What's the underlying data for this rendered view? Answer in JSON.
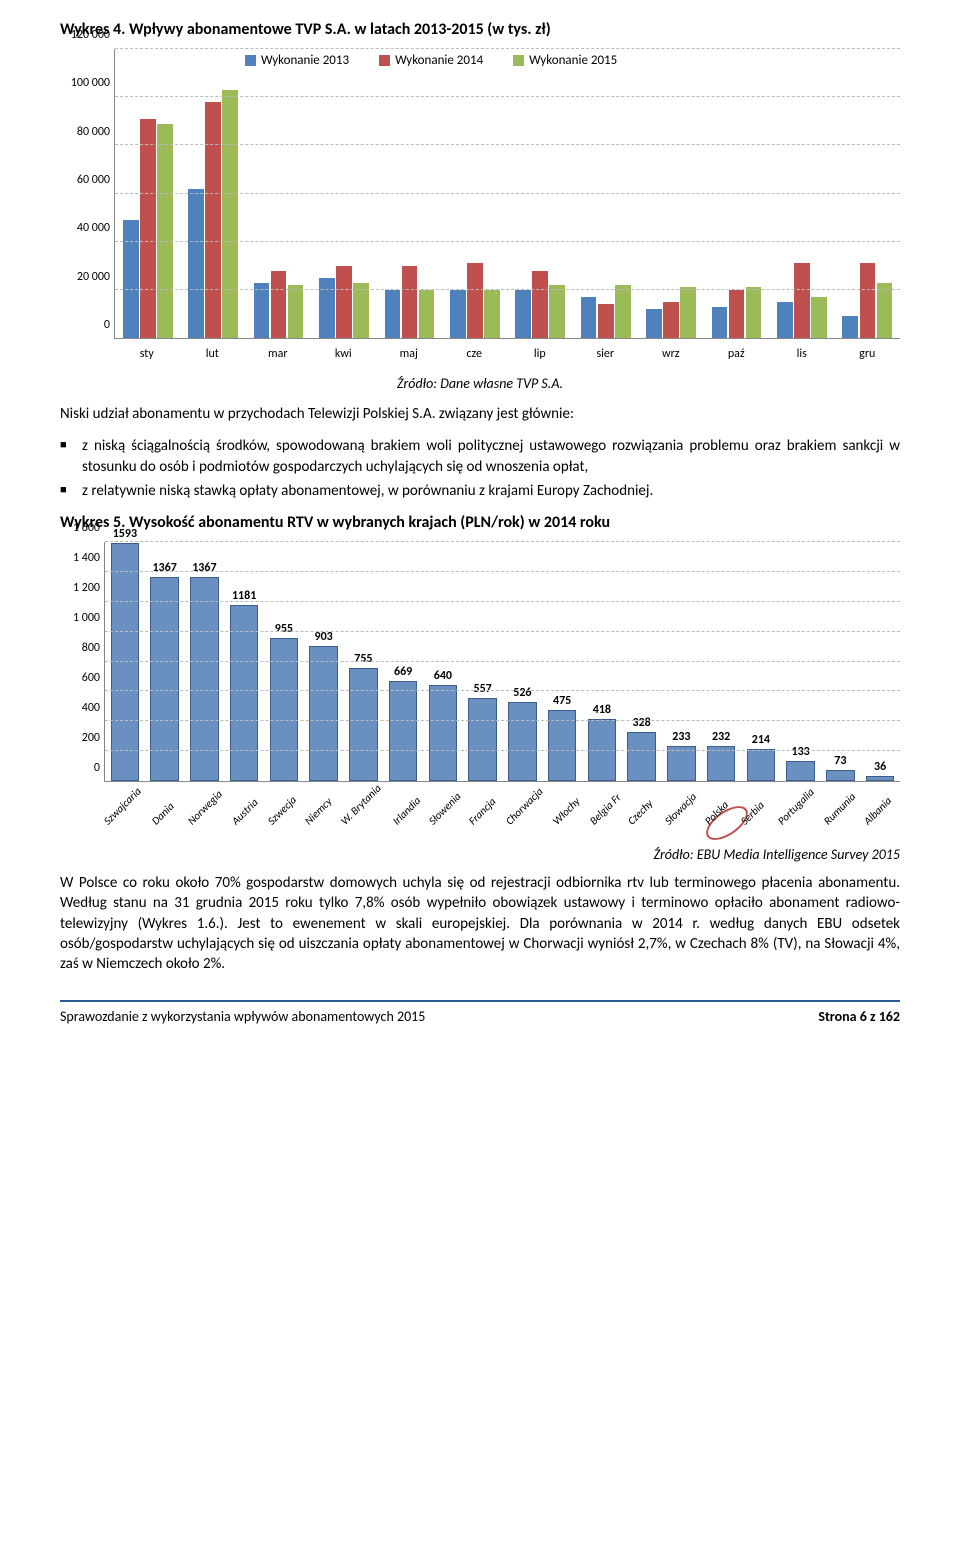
{
  "chart1": {
    "title": "Wykres 4. Wpływy abonamentowe TVP S.A. w latach 2013-2015 (w tys. zł)",
    "legend": [
      "Wykonanie 2013",
      "Wykonanie 2014",
      "Wykonanie 2015"
    ],
    "colors": [
      "#4f81bd",
      "#c0504d",
      "#9bbb59"
    ],
    "ymax": 120000,
    "ystep": 20000,
    "yticks": [
      "0",
      "20 000",
      "40 000",
      "60 000",
      "80 000",
      "100 000",
      "120 000"
    ],
    "categories": [
      "sty",
      "lut",
      "mar",
      "kwi",
      "maj",
      "cze",
      "lip",
      "sier",
      "wrz",
      "paź",
      "lis",
      "gru"
    ],
    "series": [
      [
        49000,
        62000,
        23000,
        25000,
        20000,
        20000,
        20000,
        17000,
        12000,
        13000,
        15000,
        9000
      ],
      [
        91000,
        98000,
        28000,
        30000,
        30000,
        31000,
        28000,
        14000,
        15000,
        20000,
        31000,
        31000
      ],
      [
        89000,
        103000,
        22000,
        23000,
        20000,
        20000,
        22000,
        22000,
        21000,
        21000,
        17000,
        23000
      ]
    ],
    "source": "Źródło: Dane własne TVP S.A."
  },
  "para1_lead": "Niski udział abonamentu w przychodach Telewizji Polskiej S.A. związany jest głównie:",
  "bullets": [
    "z niską ściągalnością środków, spowodowaną brakiem woli politycznej ustawowego rozwiązania problemu oraz brakiem sankcji w stosunku do osób i podmiotów gospodarczych uchylających się od wnoszenia opłat,",
    "z relatywnie niską stawką opłaty abonamentowej, w porównaniu z krajami Europy Zachodniej."
  ],
  "chart2": {
    "title": "Wykres 5. Wysokość abonamentu RTV w wybranych krajach (PLN/rok) w 2014 roku",
    "ymax": 1600,
    "ystep": 200,
    "yticks": [
      "0",
      "200",
      "400",
      "600",
      "800",
      "1 000",
      "1 200",
      "1 400",
      "1 600"
    ],
    "bar_color": "#6a8fc1",
    "data": [
      {
        "label": "Szwajcaria",
        "value": 1593
      },
      {
        "label": "Dania",
        "value": 1367
      },
      {
        "label": "Norwegia",
        "value": 1367
      },
      {
        "label": "Austria",
        "value": 1181
      },
      {
        "label": "Szwecja",
        "value": 955
      },
      {
        "label": "Niemcy",
        "value": 903
      },
      {
        "label": "W. Brytania",
        "value": 755
      },
      {
        "label": "Irlandia",
        "value": 669
      },
      {
        "label": "Słowenia",
        "value": 640
      },
      {
        "label": "Francja",
        "value": 557
      },
      {
        "label": "Chorwacja",
        "value": 526
      },
      {
        "label": "Włochy",
        "value": 475
      },
      {
        "label": "Belgia Fr",
        "value": 418
      },
      {
        "label": "Czechy",
        "value": 328
      },
      {
        "label": "Słowacja",
        "value": 233
      },
      {
        "label": "Polska",
        "value": 232,
        "highlight": true
      },
      {
        "label": "Serbia",
        "value": 214
      },
      {
        "label": "Portugalia",
        "value": 133
      },
      {
        "label": "Rumunia",
        "value": 73
      },
      {
        "label": "Albania",
        "value": 36
      }
    ],
    "source": "Źródło: EBU Media Intelligence Survey 2015"
  },
  "para2": "W Polsce co roku około 70% gospodarstw domowych uchyla się od rejestracji odbiornika rtv lub terminowego płacenia abonamentu. Według stanu na 31 grudnia 2015 roku tylko 7,8% osób wypełniło obowiązek ustawowy i terminowo opłaciło abonament radiowo-telewizyjny (Wykres 1.6.). Jest to ewenement w skali europejskiej. Dla porównania w 2014 r. według danych EBU odsetek osób/gospodarstw uchylających się od uiszczania opłaty abonamentowej w Chorwacji wyniósł 2,7%, w Czechach 8% (TV), na Słowacji 4%, zaś w Niemczech około 2%.",
  "footer": {
    "left": "Sprawozdanie z wykorzystania wpływów abonamentowych 2015",
    "right": "Strona 6 z 162"
  }
}
